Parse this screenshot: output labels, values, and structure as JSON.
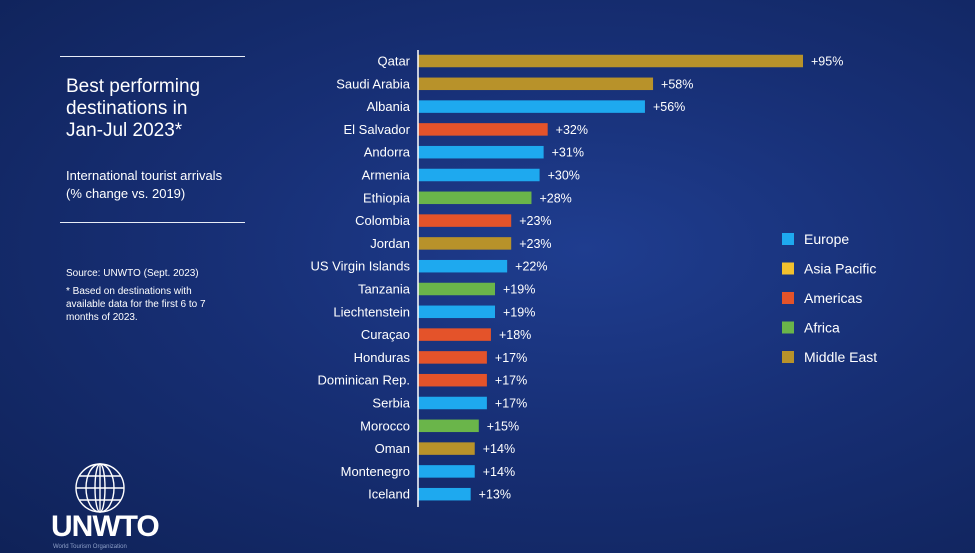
{
  "title": "Best performing\ndestinations in\nJan-Jul 2023*",
  "subtitle": "International tourist arrivals\n(% change vs. 2019)",
  "source": "Source: UNWTO (Sept. 2023)",
  "footnote": "*  Based on destinations with\navailable data for the first 6 to 7\nmonths of 2023.",
  "logo": {
    "name": "UNWTO",
    "tagline": "World Tourism Organization"
  },
  "colors": {
    "Europe": "#1ea9ef",
    "Asia Pacific": "#f2c12e",
    "Americas": "#e4532a",
    "Africa": "#6ab54a",
    "Middle East": "#b8922a"
  },
  "chart_data": {
    "type": "bar",
    "orientation": "horizontal",
    "title": "",
    "xlabel": "",
    "ylabel": "",
    "xlim": [
      0,
      100
    ],
    "grid": false,
    "legend_position": "right",
    "legend": [
      "Europe",
      "Asia Pacific",
      "Americas",
      "Africa",
      "Middle East"
    ],
    "bars": [
      {
        "category": "Qatar",
        "value": 95,
        "label": "+95%",
        "region": "Middle East"
      },
      {
        "category": "Saudi Arabia",
        "value": 58,
        "label": "+58%",
        "region": "Middle East"
      },
      {
        "category": "Albania",
        "value": 56,
        "label": "+56%",
        "region": "Europe"
      },
      {
        "category": "El Salvador",
        "value": 32,
        "label": "+32%",
        "region": "Americas"
      },
      {
        "category": "Andorra",
        "value": 31,
        "label": "+31%",
        "region": "Europe"
      },
      {
        "category": "Armenia",
        "value": 30,
        "label": "+30%",
        "region": "Europe"
      },
      {
        "category": "Ethiopia",
        "value": 28,
        "label": "+28%",
        "region": "Africa"
      },
      {
        "category": "Colombia",
        "value": 23,
        "label": "+23%",
        "region": "Americas"
      },
      {
        "category": "Jordan",
        "value": 23,
        "label": "+23%",
        "region": "Middle East"
      },
      {
        "category": "US Virgin Islands",
        "value": 22,
        "label": "+22%",
        "region": "Europe"
      },
      {
        "category": "Tanzania",
        "value": 19,
        "label": "+19%",
        "region": "Africa"
      },
      {
        "category": "Liechtenstein",
        "value": 19,
        "label": "+19%",
        "region": "Europe"
      },
      {
        "category": "Curaçao",
        "value": 18,
        "label": "+18%",
        "region": "Americas"
      },
      {
        "category": "Honduras",
        "value": 17,
        "label": "+17%",
        "region": "Americas"
      },
      {
        "category": "Dominican Rep.",
        "value": 17,
        "label": "+17%",
        "region": "Americas"
      },
      {
        "category": "Serbia",
        "value": 17,
        "label": "+17%",
        "region": "Europe"
      },
      {
        "category": "Morocco",
        "value": 15,
        "label": "+15%",
        "region": "Africa"
      },
      {
        "category": "Oman",
        "value": 14,
        "label": "+14%",
        "region": "Middle East"
      },
      {
        "category": "Montenegro",
        "value": 14,
        "label": "+14%",
        "region": "Europe"
      },
      {
        "category": "Iceland",
        "value": 13,
        "label": "+13%",
        "region": "Europe"
      }
    ]
  }
}
